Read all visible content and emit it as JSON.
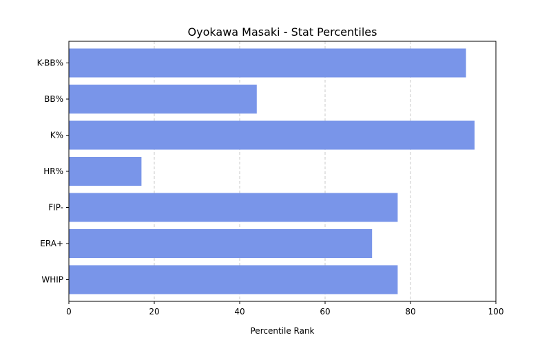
{
  "chart_data": {
    "type": "bar",
    "orientation": "horizontal",
    "title": "Oyokawa Masaki - Stat Percentiles",
    "xlabel": "Percentile Rank",
    "ylabel": "",
    "xlim": [
      0,
      100
    ],
    "xticks": [
      0,
      20,
      40,
      60,
      80,
      100
    ],
    "grid": "x-dashed",
    "bar_color": "#7995e9",
    "categories": [
      "K-BB%",
      "BB%",
      "K%",
      "HR%",
      "FIP-",
      "ERA+",
      "WHIP"
    ],
    "values": [
      93,
      44,
      95,
      17,
      77,
      71,
      77
    ]
  }
}
